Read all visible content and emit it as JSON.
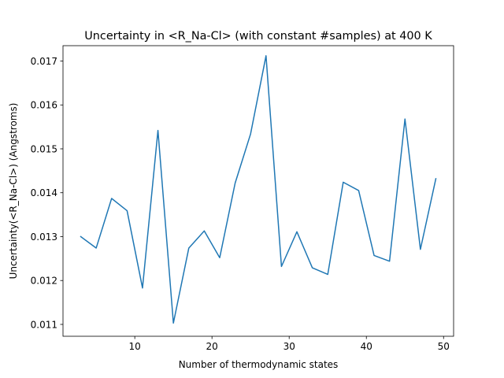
{
  "chart_data": {
    "type": "line",
    "title": "Uncertainty in <R_Na-Cl> (with constant #samples) at 400 K",
    "xlabel": "Number of thermodynamic states",
    "ylabel": "Uncertainty(<R_Na-Cl>) (Angstroms)",
    "xlim": [
      0.7,
      51.3
    ],
    "ylim": [
      0.01073,
      0.01735
    ],
    "x_ticks": [
      10,
      20,
      30,
      40,
      50
    ],
    "y_ticks": [
      0.011,
      0.012,
      0.013,
      0.014,
      0.015,
      0.016,
      0.017
    ],
    "x_tick_labels": [
      "10",
      "20",
      "30",
      "40",
      "50"
    ],
    "y_tick_labels": [
      "0.011",
      "0.012",
      "0.013",
      "0.014",
      "0.015",
      "0.016",
      "0.017"
    ],
    "grid": false,
    "series": [
      {
        "color": "#1f77b4",
        "x": [
          3,
          5,
          7,
          9,
          11,
          13,
          15,
          17,
          19,
          21,
          23,
          25,
          27,
          29,
          31,
          33,
          35,
          37,
          39,
          41,
          43,
          45,
          47,
          49
        ],
        "y": [
          0.013,
          0.01274,
          0.01387,
          0.01359,
          0.01183,
          0.01542,
          0.01103,
          0.01274,
          0.01313,
          0.01252,
          0.01422,
          0.01534,
          0.01712,
          0.01232,
          0.01311,
          0.01229,
          0.01214,
          0.01424,
          0.01405,
          0.01257,
          0.01244,
          0.01568,
          0.01271,
          0.01432
        ]
      }
    ]
  }
}
